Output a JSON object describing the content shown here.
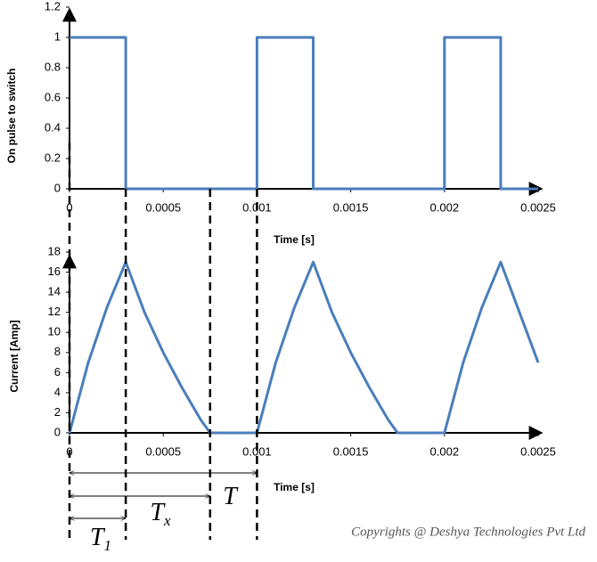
{
  "chart_data": [
    {
      "type": "line",
      "y_label": "On pulse to switch",
      "x_label": "Time [s]",
      "color": "#4a7ebb",
      "x": [
        0,
        0.0003,
        0.0003,
        0.001,
        0.001,
        0.0013,
        0.0013,
        0.002,
        0.002,
        0.0023,
        0.0023,
        0.0025
      ],
      "values": [
        1,
        1,
        0,
        0,
        1,
        1,
        0,
        0,
        1,
        1,
        0,
        0
      ],
      "xlim": [
        0,
        0.0025
      ],
      "xticks": [
        0,
        0.0005,
        0.001,
        0.0015,
        0.002,
        0.0025
      ],
      "ylim": [
        0,
        1.2
      ],
      "yticks": [
        0,
        0.2,
        0.4,
        0.6,
        0.8,
        1,
        1.2
      ]
    },
    {
      "type": "line",
      "y_label": "Current [Amp]",
      "x_label": "Time [s]",
      "color": "#4a7ebb",
      "x": [
        0,
        0.0001,
        0.0002,
        0.0003,
        0.0004,
        0.0005,
        0.0006,
        0.0007,
        0.00075,
        0.001,
        0.0011,
        0.0012,
        0.0013,
        0.0014,
        0.0015,
        0.0016,
        0.0017,
        0.00175,
        0.002,
        0.0021,
        0.0022,
        0.0023,
        0.0024,
        0.0025
      ],
      "values": [
        0,
        7,
        12.5,
        17,
        12,
        8,
        4.5,
        1.3,
        0,
        0,
        7,
        12.5,
        17,
        12,
        8,
        4.5,
        1.3,
        0,
        0,
        7,
        12.5,
        17,
        12,
        7
      ],
      "xlim": [
        0,
        0.0025
      ],
      "xticks": [
        0,
        0.0005,
        0.001,
        0.0015,
        0.002,
        0.0025
      ],
      "ylim": [
        0,
        18
      ],
      "yticks": [
        0,
        2,
        4,
        6,
        8,
        10,
        12,
        14,
        16,
        18
      ]
    }
  ],
  "annotations": {
    "markers": [
      0,
      0.0003,
      0.00075,
      0.001
    ],
    "spans": [
      {
        "text": "T",
        "from": 0,
        "to": 0.001
      },
      {
        "text": "T",
        "sub": "x",
        "from": 0,
        "to": 0.00075
      },
      {
        "text": "T",
        "sub": "1",
        "from": 0,
        "to": 0.0003
      }
    ],
    "copyright": "Copyrights @ Deshya Technologies Pvt Ltd"
  }
}
